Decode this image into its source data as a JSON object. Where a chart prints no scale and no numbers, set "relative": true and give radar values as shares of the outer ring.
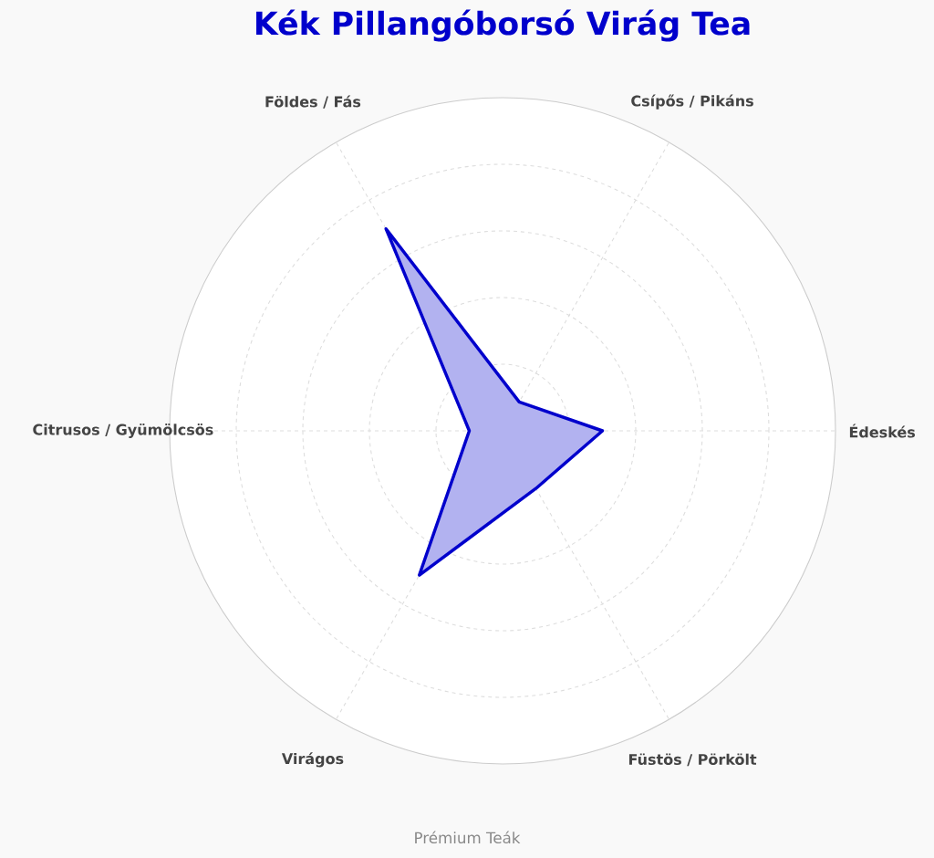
{
  "chart_data": {
    "type": "radar",
    "title": "Kék Pillangóborsó Virág Tea",
    "categories": [
      "Csípős / Pikáns",
      "Édeskés",
      "Füstös / Pörkölt",
      "Virágos",
      "Citrusos / Gyümölcsös",
      "Földes / Fás"
    ],
    "relative": true,
    "grid": true,
    "series": [
      {
        "color": "#0000cc",
        "values": [
          0.1,
          0.3,
          0.2,
          0.5,
          0.1,
          0.7
        ]
      }
    ],
    "annotations": [
      "Prémium Teák"
    ]
  }
}
